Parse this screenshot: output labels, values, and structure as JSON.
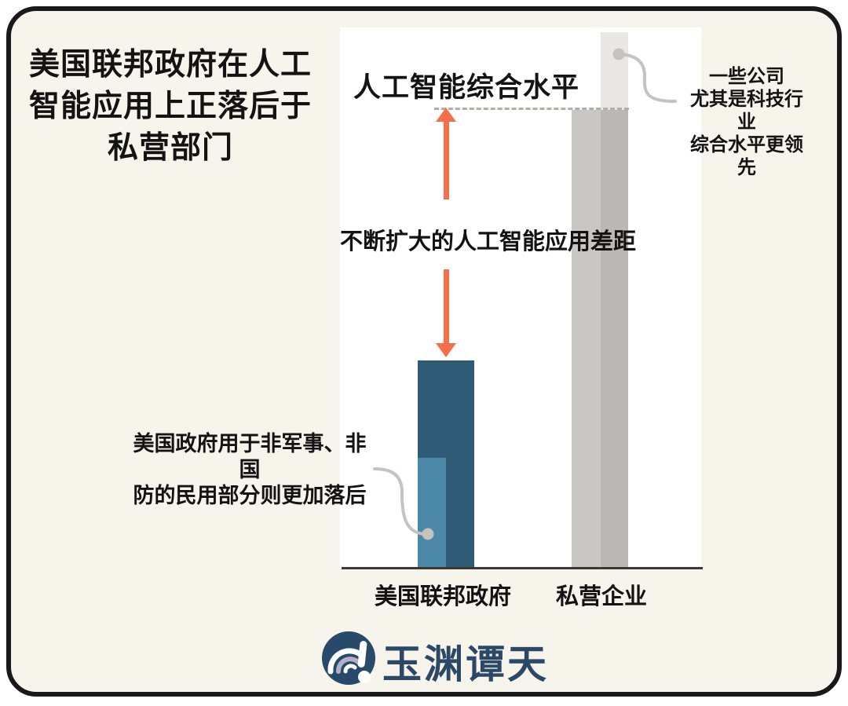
{
  "headline": {
    "lines": [
      "美国联邦政府在人工",
      "智能应用上正落后于",
      "私营部门"
    ]
  },
  "chart": {
    "title": "人工智能综合水平",
    "gap_label": "不断扩大的人工智能应用差距",
    "x_labels": {
      "federal": "美国联邦政府",
      "private": "私营企业"
    },
    "annotation_right": {
      "lines": [
        "一些公司",
        "尤其是科技行业",
        "综合水平更领先"
      ]
    },
    "annotation_left": {
      "lines": [
        "美国政府用于非军事、非国",
        "防的民用部分则更加落后"
      ]
    }
  },
  "logo": {
    "text": "玉渊谭天"
  },
  "colors": {
    "background": "#f7f4ec",
    "frame_border": "#191919",
    "chart_bg": "#ffffff",
    "federal_bar": "#2f5b77",
    "civilian_bar": "#4c88a8",
    "private_bar": "#c9c7c4",
    "tech_strip": "#e9e7e3",
    "arrow_orange": "#f4704a",
    "dashed_line": "#b1aeaa",
    "connector_gray": "#c6c3bf",
    "axis": "#3b3935",
    "logo_navy": "#274a6b"
  },
  "chart_data": {
    "type": "bar",
    "title": "人工智能综合水平",
    "categories": [
      "美国联邦政府",
      "私营企业"
    ],
    "series": [
      {
        "name": "人工智能综合水平",
        "values": [
          38.6,
          85.2
        ]
      },
      {
        "name": "非军事、非国防民用部分",
        "values": [
          20.5,
          null
        ]
      },
      {
        "name": "科技行业领先公司",
        "values": [
          null,
          99.5
        ]
      }
    ],
    "bars": {
      "federal": {
        "label": "美国联邦政府",
        "value": 38.6,
        "color": "#2f5b77"
      },
      "civilian": {
        "label": "非军事、非国防民用部分",
        "value": 20.5,
        "color": "#4c88a8"
      },
      "private": {
        "label": "私营企业",
        "value": 85.2,
        "color": "#c9c7c4"
      },
      "tech": {
        "label": "科技行业领先公司",
        "value": 99.5,
        "color": "#e9e7e3"
      }
    },
    "ylim": [
      0,
      100
    ],
    "unit": "relative level (no numeric axis shown)",
    "grid": false,
    "legend": false,
    "annotations": [
      "不断扩大的人工智能应用差距",
      "一些公司尤其是科技行业综合水平更领先",
      "美国政府用于非军事、非国防的民用部分则更加落后"
    ]
  }
}
